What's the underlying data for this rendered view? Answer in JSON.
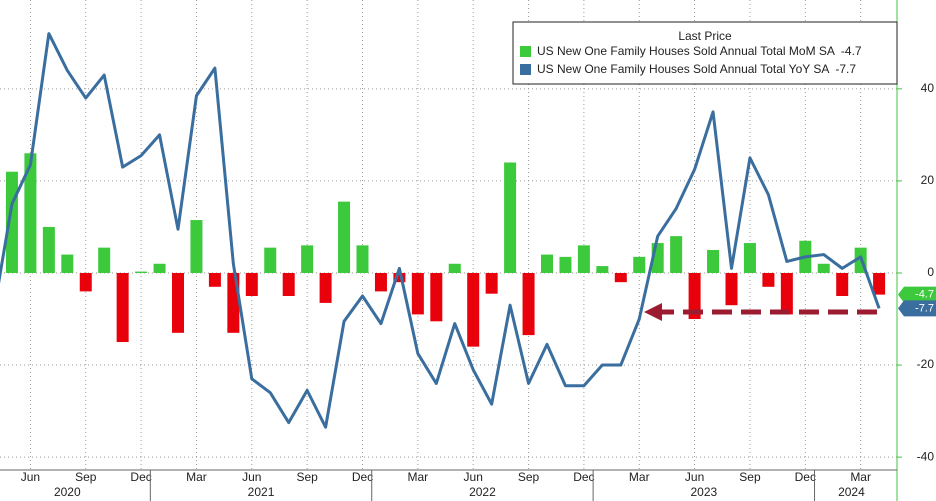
{
  "chart_data": {
    "type": "combo",
    "legend_title": "Last Price",
    "categories": [
      null,
      null,
      "Jun",
      null,
      null,
      "Sep",
      null,
      null,
      "Dec",
      null,
      null,
      "Mar",
      null,
      null,
      "Jun",
      null,
      null,
      "Sep",
      null,
      null,
      "Dec",
      null,
      null,
      "Mar",
      null,
      null,
      "Jun",
      null,
      null,
      "Sep",
      null,
      null,
      "Dec",
      null,
      null,
      "Mar",
      null,
      null,
      "Jun",
      null,
      null,
      "Sep",
      null,
      null,
      "Dec",
      null,
      null,
      "Mar",
      null
    ],
    "x_groups": [
      "2020",
      "2021",
      "2022",
      "2023",
      "2024"
    ],
    "series": [
      {
        "name": "US New One Family Houses Sold Annual Total MoM SA",
        "type": "bar",
        "color": "#3cc93c",
        "negative_color": "#e8000b",
        "values": [
          null,
          22,
          26,
          10,
          4,
          -4,
          5.5,
          -15,
          0.3,
          2,
          -13,
          11.5,
          -3,
          -13,
          -5,
          5.5,
          -5,
          6,
          -6.5,
          15.5,
          6,
          -4,
          -2,
          -9,
          -10.5,
          2,
          -16,
          -4.5,
          24,
          -13.5,
          4,
          3.5,
          6,
          1.5,
          -2,
          3.5,
          6.5,
          8,
          -10,
          5,
          -7,
          6.5,
          -3,
          -9,
          7,
          2,
          -5,
          5.5,
          -4.7
        ]
      },
      {
        "name": "US New One Family Houses Sold Annual Total YoY SA",
        "type": "line",
        "color": "#3a6e9f",
        "values": [
          -8.7,
          15,
          23.5,
          52,
          44,
          38,
          43,
          23,
          25.5,
          30,
          9.5,
          38.5,
          44.5,
          2,
          -23,
          -26,
          -32.5,
          -25.5,
          -33.5,
          -10.5,
          -5,
          -11,
          1,
          -17.5,
          -24,
          -11,
          -21,
          -28.5,
          -7,
          -24,
          -15.5,
          -24.5,
          -24.5,
          -20,
          -20,
          -10,
          8,
          14,
          22.5,
          35,
          1,
          25,
          17,
          2.5,
          3.5,
          4,
          1,
          3.5,
          -7.7
        ]
      }
    ],
    "ylim": [
      -42.8,
      59.3
    ],
    "yticks": [
      -40,
      -20,
      0,
      20,
      40
    ],
    "grid": true,
    "axis_color": "#3cc93c"
  }
}
